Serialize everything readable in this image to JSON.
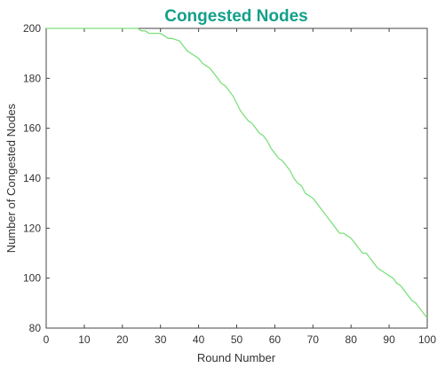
{
  "chart_data": {
    "type": "line",
    "title": "Congested Nodes",
    "xlabel": "Round Number",
    "ylabel": "Number of Congested Nodes",
    "xlim": [
      0,
      100
    ],
    "ylim": [
      80,
      200
    ],
    "xticks": [
      0,
      10,
      20,
      30,
      40,
      50,
      60,
      70,
      80,
      90,
      100
    ],
    "yticks": [
      80,
      100,
      120,
      140,
      160,
      180,
      200
    ],
    "grid": false,
    "line_color": "#7de07d",
    "title_color": "#13a08a",
    "series": [
      {
        "x": [
          0,
          24,
          25,
          26,
          27,
          28,
          30,
          31,
          32,
          33,
          35,
          36,
          37,
          38,
          40,
          41,
          42,
          43,
          44,
          45,
          46,
          47,
          48,
          49,
          50,
          51,
          52,
          53,
          54,
          55,
          56,
          57,
          58,
          59,
          60,
          61,
          62,
          63,
          64,
          65,
          66,
          67,
          68,
          69,
          70,
          71,
          72,
          73,
          74,
          75,
          76,
          77,
          78,
          79,
          80,
          81,
          82,
          83,
          84,
          85,
          86,
          87,
          88,
          89,
          90,
          91,
          92,
          93,
          94,
          95,
          96,
          97,
          98,
          99,
          100
        ],
        "values": [
          200,
          200,
          199,
          199,
          198,
          198,
          198,
          197,
          196,
          196,
          195,
          193,
          191,
          190,
          188,
          186,
          185,
          184,
          182,
          180,
          178,
          177,
          175,
          173,
          170,
          167,
          165,
          163,
          162,
          160,
          158,
          157,
          155,
          152,
          150,
          148,
          147,
          145,
          143,
          140,
          138,
          137,
          134,
          133,
          132,
          130,
          128,
          126,
          124,
          122,
          120,
          118,
          118,
          117,
          116,
          114,
          112,
          110,
          110,
          108,
          106,
          104,
          103,
          102,
          101,
          100,
          98,
          97,
          95,
          93,
          91,
          90,
          88,
          86,
          84
        ]
      }
    ]
  }
}
